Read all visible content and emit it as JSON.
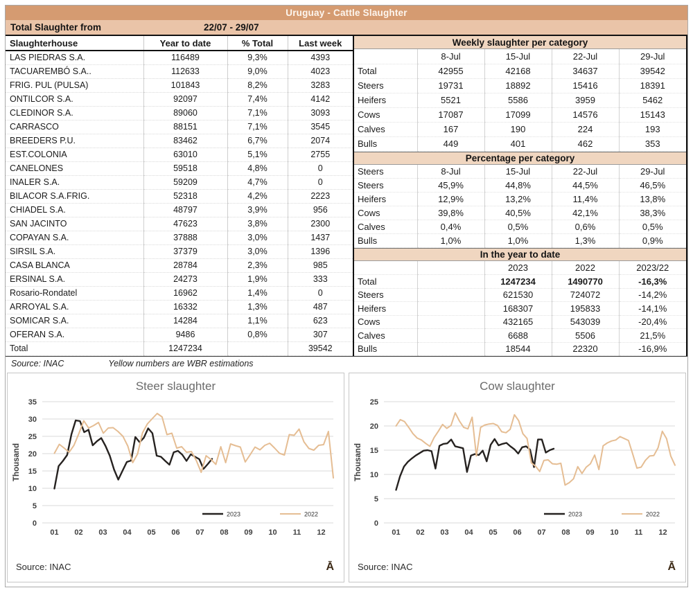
{
  "page": {
    "title_bar": "Uruguay - Cattle Slaughter",
    "subtitle_label": "Total Slaughter from",
    "subtitle_range": "22/07 - 29/07",
    "logo_glyph": "Ā"
  },
  "colors": {
    "title_bar_bg": "#d59b71",
    "subtitle_bar_bg": "#eac4a8",
    "section_header_bg": "#f0d6c0",
    "series_2023": "#262220",
    "series_2022": "#e5bd93",
    "gridline": "#d9d9d9"
  },
  "left_table": {
    "headers": [
      "Slaughterhouse",
      "Year to date",
      "% Total",
      "Last week"
    ],
    "rows": [
      [
        "LAS PIEDRAS S.A.",
        "116489",
        "9,3%",
        "4393"
      ],
      [
        "TACUAREMBÓ S.A..",
        "112633",
        "9,0%",
        "4023"
      ],
      [
        "FRIG. PUL (PULSA)",
        "101843",
        "8,2%",
        "3283"
      ],
      [
        "ONTILCOR S.A.",
        "92097",
        "7,4%",
        "4142"
      ],
      [
        "CLEDINOR S.A.",
        "89060",
        "7,1%",
        "3093"
      ],
      [
        "CARRASCO",
        "88151",
        "7,1%",
        "3545"
      ],
      [
        "BREEDERS P.U.",
        "83462",
        "6,7%",
        "2074"
      ],
      [
        "EST.COLONIA",
        "63010",
        "5,1%",
        "2755"
      ],
      [
        "CANELONES",
        "59518",
        "4,8%",
        "0"
      ],
      [
        "INALER S.A.",
        "59209",
        "4,7%",
        "0"
      ],
      [
        "BILACOR S.A.FRIG.",
        "52318",
        "4,2%",
        "2223"
      ],
      [
        "CHIADEL S.A.",
        "48797",
        "3,9%",
        "956"
      ],
      [
        "SAN JACINTO",
        "47623",
        "3,8%",
        "2300"
      ],
      [
        "COPAYAN S.A.",
        "37888",
        "3,0%",
        "1437"
      ],
      [
        "SIRSIL S.A.",
        "37379",
        "3,0%",
        "1396"
      ],
      [
        "CASA BLANCA",
        "28784",
        "2,3%",
        "985"
      ],
      [
        "ERSINAL S.A.",
        "24273",
        "1,9%",
        "333"
      ],
      [
        "Rosario-Rondatel",
        "16962",
        "1,4%",
        "0"
      ],
      [
        "ARROYAL S.A.",
        "16332",
        "1,3%",
        "487"
      ],
      [
        "SOMICAR S.A.",
        "14284",
        "1,1%",
        "623"
      ],
      [
        "OFERAN S.A.",
        "9486",
        "0,8%",
        "307"
      ]
    ],
    "total_row": [
      "Total",
      "1247234",
      "",
      "39542"
    ],
    "source_note": "Source: INAC",
    "estimation_note": "Yellow numbers are WBR estimations"
  },
  "weekly_table": {
    "title": "Weekly slaughter per category",
    "col_headers": [
      "",
      "8-Jul",
      "15-Jul",
      "22-Jul",
      "29-Jul"
    ],
    "rows": [
      [
        "Total",
        "42955",
        "42168",
        "34637",
        "39542"
      ],
      [
        "Steers",
        "19731",
        "18892",
        "15416",
        "18391"
      ],
      [
        "Heifers",
        "5521",
        "5586",
        "3959",
        "5462"
      ],
      [
        "Cows",
        "17087",
        "17099",
        "14576",
        "15143"
      ],
      [
        "Calves",
        "167",
        "190",
        "224",
        "193"
      ],
      [
        "Bulls",
        "449",
        "401",
        "462",
        "353"
      ]
    ]
  },
  "percentage_table": {
    "title": "Percentage per category",
    "col_headers": [
      "Steers",
      "8-Jul",
      "15-Jul",
      "22-Jul",
      "29-Jul"
    ],
    "rows": [
      [
        "Steers",
        "45,9%",
        "44,8%",
        "44,5%",
        "46,5%"
      ],
      [
        "Heifers",
        "12,9%",
        "13,2%",
        "11,4%",
        "13,8%"
      ],
      [
        "Cows",
        "39,8%",
        "40,5%",
        "42,1%",
        "38,3%"
      ],
      [
        "Calves",
        "0,4%",
        "0,5%",
        "0,6%",
        "0,5%"
      ],
      [
        "Bulls",
        "1,0%",
        "1,0%",
        "1,3%",
        "0,9%"
      ]
    ]
  },
  "ytd_table": {
    "title": "In the year to date",
    "col_headers": [
      "",
      "",
      "2023",
      "2022",
      "2023/22"
    ],
    "rows": [
      [
        "Total",
        "",
        "1247234",
        "1490770",
        "-16,3%"
      ],
      [
        "Steers",
        "",
        "621530",
        "724072",
        "-14,2%"
      ],
      [
        "Heifers",
        "",
        "168307",
        "195833",
        "-14,1%"
      ],
      [
        "Cows",
        "",
        "432165",
        "543039",
        "-20,4%"
      ],
      [
        "Calves",
        "",
        "6688",
        "5506",
        "21,5%"
      ],
      [
        "Bulls",
        "",
        "18544",
        "22320",
        "-16,9%"
      ]
    ]
  },
  "chart_data": [
    {
      "type": "line",
      "title": "Steer slaughter",
      "ylabel": "Thousand",
      "ylim": [
        0,
        35
      ],
      "yticks": [
        0,
        5,
        10,
        15,
        20,
        25,
        30,
        35
      ],
      "xticklabels": [
        "01",
        "02",
        "03",
        "04",
        "05",
        "06",
        "07",
        "08",
        "09",
        "10",
        "11",
        "12"
      ],
      "grid": true,
      "legend_position": "inside-bottom-right",
      "source": "Source: INAC",
      "series": [
        {
          "name": "2023",
          "color": "#262220",
          "width": 2.4,
          "x_start_month": 1,
          "x_end_month": 7.5,
          "values": [
            9.9,
            16.4,
            17.9,
            19.6,
            25.6,
            29.6,
            29.4,
            26.2,
            26.9,
            22.4,
            23.6,
            24.5,
            22.2,
            19.4,
            15.4,
            12.5,
            15.1,
            17.6,
            18.0,
            24.8,
            23.3,
            24.6,
            27.3,
            25.9,
            19.4,
            19.1,
            17.9,
            16.8,
            20.4,
            20.8,
            19.7,
            17.9,
            19.8,
            19.1,
            18.4,
            15.6,
            17.0,
            18.5
          ]
        },
        {
          "name": "2022",
          "color": "#e5bd93",
          "width": 2,
          "x_start_month": 1,
          "x_end_month": 12.5,
          "values": [
            20.1,
            22.7,
            21.6,
            20.4,
            22.4,
            25.8,
            29.5,
            27.4,
            28.1,
            29.0,
            25.9,
            27.4,
            27.5,
            26.4,
            25.0,
            22.2,
            17.4,
            19.9,
            26.0,
            28.6,
            30.1,
            31.6,
            30.6,
            25.5,
            25.9,
            21.6,
            22.0,
            20.4,
            20.6,
            18.0,
            14.6,
            19.4,
            18.3,
            16.9,
            22.0,
            17.4,
            22.8,
            22.3,
            21.9,
            17.6,
            19.7,
            21.9,
            21.1,
            22.4,
            23.0,
            21.6,
            20.1,
            19.6,
            25.5,
            25.3,
            27.1,
            23.4,
            21.5,
            21.0,
            22.4,
            22.6,
            26.4,
            13.0
          ]
        }
      ]
    },
    {
      "type": "line",
      "title": "Cow slaughter",
      "ylabel": "Thousand",
      "ylim": [
        0,
        25
      ],
      "yticks": [
        0,
        5,
        10,
        15,
        20,
        25
      ],
      "xticklabels": [
        "01",
        "02",
        "03",
        "04",
        "05",
        "06",
        "07",
        "08",
        "09",
        "10",
        "11",
        "12"
      ],
      "grid": true,
      "legend_position": "inside-bottom-right",
      "source": "Source: INAC",
      "series": [
        {
          "name": "2023",
          "color": "#262220",
          "width": 2.4,
          "x_start_month": 1,
          "x_end_month": 7.5,
          "values": [
            6.8,
            9.6,
            11.6,
            12.6,
            13.3,
            13.9,
            14.4,
            14.9,
            15.0,
            14.8,
            11.2,
            15.9,
            16.3,
            16.4,
            17.2,
            15.8,
            15.6,
            15.4,
            10.5,
            13.9,
            14.2,
            14.0,
            14.9,
            12.7,
            16.1,
            17.3,
            16.0,
            16.3,
            16.5,
            15.8,
            15.2,
            14.3,
            15.6,
            15.8,
            15.1,
            11.5,
            17.2,
            17.2,
            14.5,
            15.0,
            15.3
          ]
        },
        {
          "name": "2022",
          "color": "#e5bd93",
          "width": 2,
          "x_start_month": 1,
          "x_end_month": 12.5,
          "values": [
            20.0,
            21.3,
            20.9,
            19.7,
            18.4,
            17.5,
            17.1,
            16.4,
            15.8,
            17.6,
            18.9,
            20.3,
            19.5,
            20.1,
            22.7,
            21.0,
            19.7,
            19.4,
            21.8,
            13.8,
            19.7,
            20.2,
            20.4,
            20.5,
            20.1,
            18.8,
            18.6,
            19.3,
            22.3,
            21.1,
            18.4,
            17.4,
            12.4,
            11.7,
            10.6,
            12.9,
            13.0,
            12.2,
            12.1,
            12.3,
            7.8,
            8.3,
            9.1,
            11.6,
            10.2,
            11.5,
            12.2,
            14.0,
            11.0,
            15.9,
            16.5,
            16.9,
            17.1,
            17.8,
            17.4,
            17.0,
            14.2,
            11.3,
            11.5,
            12.9,
            13.8,
            13.9,
            15.5,
            18.9,
            17.4,
            13.8,
            11.9
          ]
        }
      ]
    }
  ]
}
